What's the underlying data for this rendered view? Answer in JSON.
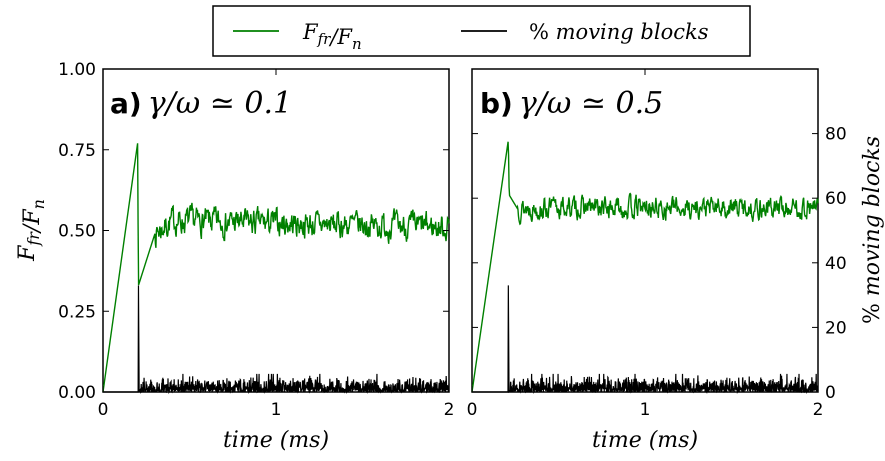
{
  "colors": {
    "friction": "#008000",
    "moving": "#000000",
    "frame": "#000000"
  },
  "legend": {
    "placement": "top-center",
    "entries": [
      {
        "label": "F_fr/F_n",
        "color": "#008000",
        "parts": [
          {
            "t": "F",
            "sub": false
          },
          {
            "t": "fr",
            "sub": true
          },
          {
            "t": "/F",
            "sub": false
          },
          {
            "t": "n",
            "sub": true
          }
        ]
      },
      {
        "label": "% moving blocks",
        "color": "#000000",
        "parts": [
          {
            "t": "% ",
            "sub": false,
            "upright": true
          },
          {
            "t": "moving blocks",
            "sub": false
          }
        ]
      }
    ]
  },
  "chart_data": [
    {
      "type": "line",
      "panel_label": "a)",
      "title": "γ/ω ≃ 0.1",
      "xlabel": "time (ms)",
      "ylabel": "F_fr/F_n",
      "xlim": [
        0,
        2
      ],
      "ylim": [
        0,
        1
      ],
      "xticks": [
        "0",
        "1",
        "2"
      ],
      "yticks": [
        "0.00",
        "0.25",
        "0.50",
        "0.75",
        "1.00"
      ],
      "grid": false,
      "series": [
        {
          "name": "F_fr/F_n",
          "axis": "left",
          "profile": [
            [
              0,
              0.0
            ],
            [
              0.2,
              0.77
            ],
            [
              0.205,
              0.33
            ],
            [
              0.3,
              0.49
            ],
            [
              0.4,
              0.53
            ],
            [
              2.0,
              0.51
            ]
          ],
          "plateau_mean": 0.52,
          "noise_amplitude": 0.025
        },
        {
          "name": "% moving blocks",
          "axis": "right",
          "spike": {
            "x": 0.205,
            "y": 33
          },
          "baseline_max": 4,
          "ylim": [
            0,
            100
          ]
        }
      ]
    },
    {
      "type": "line",
      "panel_label": "b)",
      "title": "γ/ω ≃ 0.5",
      "xlabel": "time (ms)",
      "ylabel": "% moving blocks",
      "xlim": [
        0,
        2
      ],
      "ylim": [
        0,
        100
      ],
      "xticks": [
        "0",
        "1",
        "2"
      ],
      "yticks_right": [
        "0",
        "20",
        "40",
        "60",
        "80"
      ],
      "grid": false,
      "series": [
        {
          "name": "F_fr/F_n",
          "axis": "left",
          "profile": [
            [
              0,
              0.0
            ],
            [
              0.21,
              0.78
            ],
            [
              0.215,
              0.61
            ],
            [
              0.26,
              0.57
            ],
            [
              0.3,
              0.57
            ],
            [
              2.0,
              0.57
            ]
          ],
          "plateau_mean": 0.57,
          "noise_amplitude": 0.02
        },
        {
          "name": "% moving blocks",
          "axis": "right",
          "spike": {
            "x": 0.21,
            "y": 33
          },
          "baseline_max": 4,
          "ylim": [
            0,
            100
          ]
        }
      ]
    }
  ]
}
